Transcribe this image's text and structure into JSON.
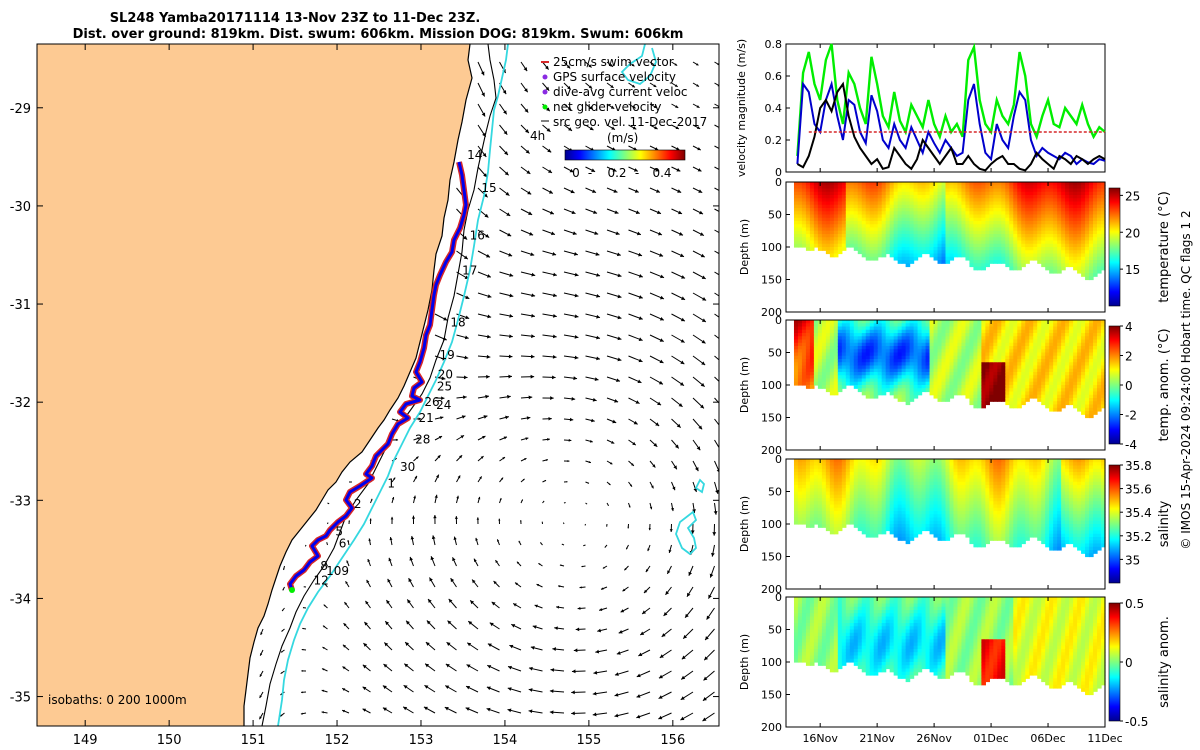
{
  "header": {
    "title_line1": "SL248 Yamba20171114 13-Nov 23Z to 11-Dec 23Z.",
    "title_line2": "Dist. over ground: 819km. Dist. swum: 606km. Mission DOG: 819km. Swum: 606km"
  },
  "map": {
    "x_ticks": [
      "149",
      "150",
      "151",
      "152",
      "153",
      "154",
      "155",
      "156"
    ],
    "y_ticks": [
      "-29",
      "-30",
      "-31",
      "-32",
      "-33",
      "-34",
      "-35"
    ],
    "isobaths_label": "isobaths: 0   200  1000m",
    "legend": {
      "items": [
        {
          "label": "25cm/s swim vector",
          "color": "#d62728"
        },
        {
          "label": "GPS surface velocity",
          "color": "#8a2be2"
        },
        {
          "label": "dive-avg current veloc",
          "color": "#8a2be2"
        },
        {
          "label": "net glider velocity",
          "color": "#00ee00"
        },
        {
          "label": "src geo. vel. 11-Dec-2017",
          "color": "#000000"
        }
      ],
      "sub_left": "4h",
      "sub_right": "(m/s)"
    },
    "colorbar": {
      "ticks": [
        "0",
        "0.2",
        "0.4"
      ]
    },
    "day_labels": [
      {
        "text": "14",
        "lon": 153.55,
        "lat": -29.52
      },
      {
        "text": "15",
        "lon": 153.72,
        "lat": -29.86
      },
      {
        "text": "16",
        "lon": 153.58,
        "lat": -30.34
      },
      {
        "text": "17",
        "lon": 153.49,
        "lat": -30.7
      },
      {
        "text": "18",
        "lon": 153.35,
        "lat": -31.23
      },
      {
        "text": "19",
        "lon": 153.22,
        "lat": -31.56
      },
      {
        "text": "20",
        "lon": 153.2,
        "lat": -31.76
      },
      {
        "text": "25",
        "lon": 153.19,
        "lat": -31.88
      },
      {
        "text": "24",
        "lon": 153.18,
        "lat": -32.07
      },
      {
        "text": "26",
        "lon": 153.04,
        "lat": -32.04
      },
      {
        "text": "21",
        "lon": 152.97,
        "lat": -32.2
      },
      {
        "text": "28",
        "lon": 152.93,
        "lat": -32.42
      },
      {
        "text": "30",
        "lon": 152.75,
        "lat": -32.7
      },
      {
        "text": "1",
        "lon": 152.6,
        "lat": -32.87
      },
      {
        "text": "2",
        "lon": 152.2,
        "lat": -33.08
      },
      {
        "text": "5",
        "lon": 151.98,
        "lat": -33.36
      },
      {
        "text": "6",
        "lon": 152.02,
        "lat": -33.48
      },
      {
        "text": "8",
        "lon": 151.8,
        "lat": -33.71
      },
      {
        "text": "109",
        "lon": 151.87,
        "lat": -33.76
      },
      {
        "text": "12",
        "lon": 151.72,
        "lat": -33.86
      }
    ]
  },
  "colors": {
    "land": "#fdca93",
    "isobath_200": "#000000",
    "isobath_1000": "#35d8e0",
    "swim": "#d62728",
    "gps": "#8a2be2",
    "track": "#0000ee",
    "net": "#00ee00"
  },
  "chart_data": [
    {
      "type": "line",
      "ylabel": "velocity magnitude (m/s)",
      "ylim": [
        0,
        0.8
      ],
      "y_ticks": [
        "0",
        "0.2",
        "0.4",
        "0.6",
        "0.8"
      ],
      "x_day_range": [
        13,
        41
      ],
      "series": [
        {
          "color": "#00ee00",
          "x": [
            14.0,
            14.5,
            15.0,
            15.5,
            16.0,
            16.5,
            17.0,
            17.5,
            18.0,
            18.5,
            19.0,
            19.5,
            20.0,
            20.5,
            21.0,
            21.5,
            22.0,
            22.5,
            23.0,
            23.5,
            24.0,
            24.5,
            25.0,
            25.5,
            26.0,
            26.5,
            27.0,
            27.5,
            28.0,
            28.5,
            29.0,
            29.5,
            30.0,
            30.5,
            31.0,
            31.5,
            32.0,
            32.5,
            33.0,
            33.5,
            34.0,
            34.5,
            35.0,
            35.5,
            36.0,
            36.5,
            37.0,
            37.5,
            38.0,
            38.5,
            39.0,
            39.5,
            40.0,
            40.5,
            41.0
          ],
          "y": [
            0.1,
            0.62,
            0.75,
            0.55,
            0.45,
            0.7,
            0.8,
            0.45,
            0.3,
            0.62,
            0.55,
            0.4,
            0.3,
            0.72,
            0.55,
            0.35,
            0.28,
            0.5,
            0.32,
            0.25,
            0.42,
            0.35,
            0.28,
            0.45,
            0.3,
            0.22,
            0.35,
            0.25,
            0.3,
            0.22,
            0.7,
            0.78,
            0.45,
            0.3,
            0.25,
            0.45,
            0.35,
            0.3,
            0.42,
            0.75,
            0.6,
            0.3,
            0.22,
            0.35,
            0.45,
            0.3,
            0.28,
            0.4,
            0.35,
            0.3,
            0.42,
            0.3,
            0.22,
            0.28,
            0.25
          ]
        },
        {
          "color": "#0000cc",
          "x": [
            14.0,
            14.5,
            15.0,
            15.5,
            16.0,
            16.5,
            17.0,
            17.5,
            18.0,
            18.5,
            19.0,
            19.5,
            20.0,
            20.5,
            21.0,
            21.5,
            22.0,
            22.5,
            23.0,
            23.5,
            24.0,
            24.5,
            25.0,
            25.5,
            26.0,
            26.5,
            27.0,
            27.5,
            28.0,
            28.5,
            29.0,
            29.5,
            30.0,
            30.5,
            31.0,
            31.5,
            32.0,
            32.5,
            33.0,
            33.5,
            34.0,
            34.5,
            35.0,
            35.5,
            36.0,
            36.5,
            37.0,
            37.5,
            38.0,
            38.5,
            39.0,
            39.5,
            40.0,
            40.5,
            41.0
          ],
          "y": [
            0.05,
            0.55,
            0.5,
            0.3,
            0.25,
            0.45,
            0.55,
            0.35,
            0.2,
            0.45,
            0.42,
            0.25,
            0.18,
            0.48,
            0.38,
            0.2,
            0.15,
            0.3,
            0.2,
            0.15,
            0.28,
            0.2,
            0.12,
            0.25,
            0.18,
            0.12,
            0.2,
            0.15,
            0.1,
            0.12,
            0.45,
            0.55,
            0.3,
            0.12,
            0.08,
            0.3,
            0.2,
            0.15,
            0.35,
            0.5,
            0.45,
            0.2,
            0.1,
            0.15,
            0.12,
            0.1,
            0.08,
            0.12,
            0.1,
            0.05,
            0.08,
            0.06,
            0.05,
            0.08,
            0.07
          ]
        },
        {
          "color": "#000000",
          "x": [
            14.0,
            14.5,
            15.0,
            15.5,
            16.0,
            16.5,
            17.0,
            17.5,
            18.0,
            18.5,
            19.0,
            19.5,
            20.0,
            20.5,
            21.0,
            21.5,
            22.0,
            22.5,
            23.0,
            23.5,
            24.0,
            24.5,
            25.0,
            25.5,
            26.0,
            26.5,
            27.0,
            27.5,
            28.0,
            28.5,
            29.0,
            29.5,
            30.0,
            30.5,
            31.0,
            31.5,
            32.0,
            32.5,
            33.0,
            33.5,
            34.0,
            34.5,
            35.0,
            35.5,
            36.0,
            36.5,
            37.0,
            37.5,
            38.0,
            38.5,
            39.0,
            39.5,
            40.0,
            40.5,
            41.0
          ],
          "y": [
            0.05,
            0.03,
            0.1,
            0.22,
            0.4,
            0.45,
            0.38,
            0.5,
            0.55,
            0.35,
            0.22,
            0.15,
            0.1,
            0.05,
            0.08,
            0.02,
            0.03,
            0.15,
            0.1,
            0.05,
            0.02,
            0.08,
            0.2,
            0.15,
            0.1,
            0.05,
            0.1,
            0.15,
            0.05,
            0.05,
            0.1,
            0.05,
            0.02,
            0.01,
            0.05,
            0.08,
            0.1,
            0.05,
            0.05,
            0.02,
            0.01,
            0.05,
            0.12,
            0.08,
            0.05,
            0.02,
            0.1,
            0.08,
            0.05,
            0.1,
            0.08,
            0.05,
            0.08,
            0.1,
            0.08
          ]
        },
        {
          "color": "#d62728",
          "x": [
            15.0,
            41.0
          ],
          "y": [
            0.25,
            0.25
          ]
        }
      ]
    },
    {
      "type": "heatmap",
      "ylabel": "Depth (m)",
      "y_ticks": [
        "0",
        "50",
        "100",
        "150",
        "200"
      ],
      "colorbar_label": "temperature (°C)",
      "colorbar_ticks": [
        "25",
        "20",
        "15"
      ],
      "colorbar_range": [
        10,
        26
      ]
    },
    {
      "type": "heatmap",
      "ylabel": "Depth (m)",
      "y_ticks": [
        "0",
        "50",
        "100",
        "150",
        "200"
      ],
      "colorbar_label": "temp. anom. (°C)",
      "colorbar_ticks": [
        "4",
        "2",
        "0",
        "-2",
        "-4"
      ],
      "colorbar_range": [
        -4,
        4
      ]
    },
    {
      "type": "heatmap",
      "ylabel": "Depth (m)",
      "y_ticks": [
        "0",
        "50",
        "100",
        "150",
        "200"
      ],
      "colorbar_label": "salinity",
      "colorbar_ticks": [
        "35.8",
        "35.6",
        "35.4",
        "35.2",
        "35"
      ],
      "colorbar_range": [
        34.8,
        35.8
      ]
    },
    {
      "type": "heatmap",
      "ylabel": "Depth (m)",
      "y_ticks": [
        "0",
        "50",
        "100",
        "150",
        "200"
      ],
      "x_ticks": [
        "16Nov",
        "21Nov",
        "26Nov",
        "01Dec",
        "06Dec",
        "11Dec"
      ],
      "colorbar_label": "salinity anom.",
      "colorbar_ticks": [
        "0.5",
        "0",
        "-0.5"
      ],
      "colorbar_range": [
        -0.5,
        0.5
      ]
    }
  ],
  "side_note": "© IMOS 15-Apr-2024 09:24:00 Hobart time. QC flags 1  2"
}
